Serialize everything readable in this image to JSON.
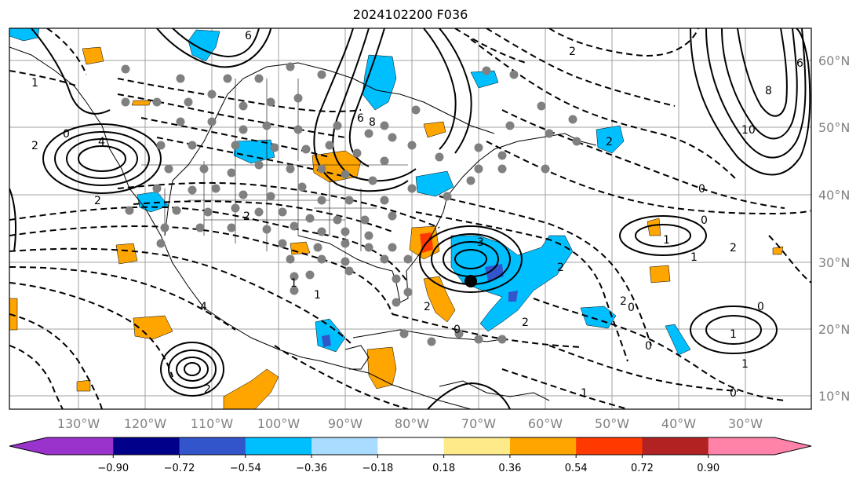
{
  "title": "2024102200 F036",
  "map": {
    "lon_labels": [
      "130°W",
      "120°W",
      "110°W",
      "100°W",
      "90°W",
      "80°W",
      "70°W",
      "60°W",
      "50°W",
      "40°W",
      "30°W"
    ],
    "lat_labels": [
      "60°N",
      "50°N",
      "40°N",
      "30°N",
      "20°N",
      "10°N"
    ],
    "contour_labels": [
      "2",
      "0",
      "4",
      "2",
      "2",
      "8",
      "6",
      "4",
      "3",
      "2",
      "0",
      "1",
      "0",
      "1",
      "2",
      "2",
      "0",
      "2",
      "10",
      "8",
      "6",
      "1",
      "1",
      "0",
      "0",
      "2",
      "1",
      "1",
      "0",
      "1",
      "2",
      "2",
      "0",
      "1",
      "6",
      "2"
    ],
    "colors": {
      "land_outline": "#000000",
      "grid": "#a0a0a0",
      "solid_contour": "#000000",
      "dashed_contour": "#000000",
      "station_dot": "#808080",
      "cyclone_center": "#000000"
    }
  },
  "colorbar": {
    "ticks": [
      "−0.90",
      "−0.72",
      "−0.54",
      "−0.36",
      "−0.18",
      "0.18",
      "0.36",
      "0.54",
      "0.72",
      "0.90"
    ],
    "colors": [
      "#9933cc",
      "#00008b",
      "#3355cc",
      "#00bfff",
      "#aadcff",
      "#ffffff",
      "#ffea8a",
      "#ffa500",
      "#ff3a00",
      "#b22222",
      "#ff82a9",
      "#ff82a9"
    ]
  }
}
